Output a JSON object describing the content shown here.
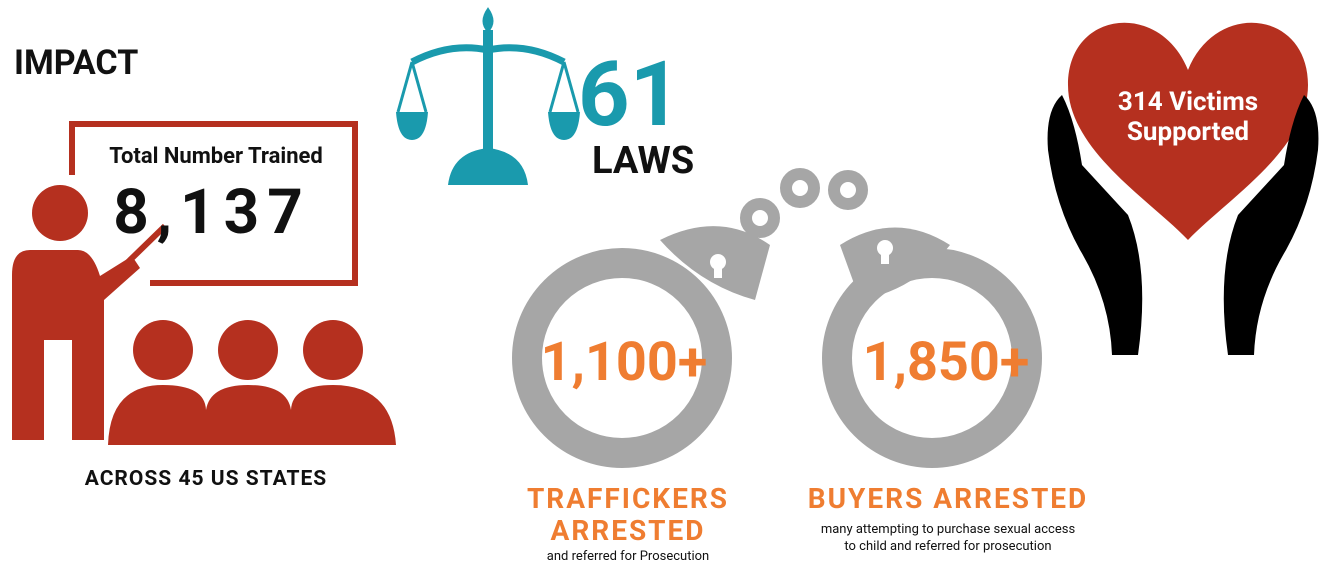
{
  "header": {
    "title": "IMPACT"
  },
  "training": {
    "label": "Total Number Trained",
    "value": "8,137",
    "caption": "ACROSS 45 US STATES"
  },
  "laws": {
    "value": "61",
    "label": "LAWS"
  },
  "traffickers": {
    "value": "1,100+",
    "title_lines": [
      "TRAFFICKERS",
      "ARRESTED"
    ],
    "note": "and referred for Prosecution"
  },
  "buyers": {
    "value": "1,850+",
    "title": "BUYERS ARRESTED",
    "note_lines": [
      "many attempting to purchase sexual access",
      "to child and referred for prosecution"
    ]
  },
  "victims": {
    "lines": [
      "314 Victims",
      "Supported"
    ]
  }
}
